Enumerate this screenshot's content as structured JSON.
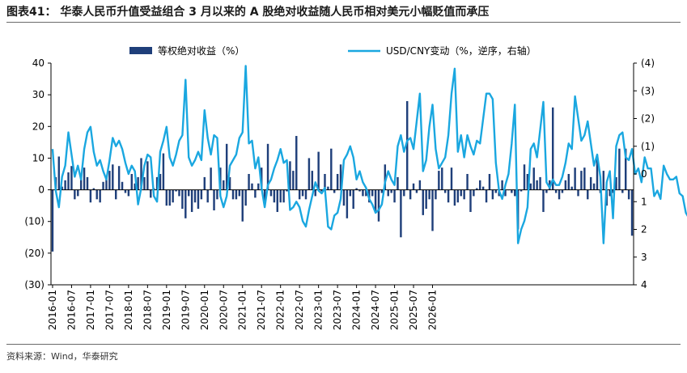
{
  "header": {
    "title": "图表41：  华泰人民币升值受益组合 3 月以来的 A 股绝对收益随人民币相对美元小幅贬值而承压"
  },
  "footer": {
    "source": "资料来源：Wind，华泰研究"
  },
  "colors": {
    "bar": "#1f3f7a",
    "line": "#1aa7e0",
    "axis": "#000000"
  },
  "chart_data": {
    "type": "bar+line",
    "title": "华泰人民币升值受益组合 3 月以来的 A 股绝对收益随人民币相对美元小幅贬值而承压",
    "xlabel": "",
    "ylabel_left": "等权绝对收益（%）",
    "ylabel_right": "USD/CNY变动（%，逆序，右轴）",
    "legend_position": "top",
    "start_month": "2016-01",
    "x_tick_labels": [
      "2016-01",
      "2016-07",
      "2017-01",
      "2017-07",
      "2018-01",
      "2018-07",
      "2019-01",
      "2019-07",
      "2020-01",
      "2020-07",
      "2021-01",
      "2021-07",
      "2022-01",
      "2022-07",
      "2023-01",
      "2023-07",
      "2024-01",
      "2024-07",
      "2025-01",
      "2025-07",
      "2026-01"
    ],
    "y_left": {
      "range": [
        -30,
        40
      ],
      "ticks": [
        40,
        30,
        20,
        10,
        0,
        -10,
        -20,
        -30
      ],
      "tick_labels": [
        "40",
        "30",
        "20",
        "10",
        "0",
        "(10)",
        "(20)",
        "(30)"
      ]
    },
    "y_right": {
      "range": [
        -4,
        4
      ],
      "inverted": true,
      "ticks": [
        -4,
        -3,
        -2,
        -1,
        0,
        1,
        2,
        3,
        4
      ],
      "tick_labels": [
        "(4)",
        "(3)",
        "(2)",
        "(1)",
        "0",
        "1",
        "2",
        "3",
        "4"
      ]
    },
    "series": [
      {
        "name": "等权绝对收益（%）",
        "type": "bar",
        "axis": "left",
        "values": [
          -19.5,
          4,
          10.5,
          1,
          3,
          5.5,
          7.5,
          -3,
          -2,
          4,
          7,
          4,
          -4,
          0.5,
          -3,
          -4,
          2.5,
          4,
          6,
          8,
          -3,
          7.5,
          2.5,
          -1,
          -2,
          5,
          2,
          4,
          10,
          4,
          9,
          -2.5,
          0.5,
          4,
          5,
          11.5,
          -5,
          -5,
          -4,
          -0.5,
          -2,
          -6,
          -9,
          -2,
          -7,
          -4,
          -6,
          -3,
          4,
          -4,
          7,
          -6.5,
          -3,
          7,
          3,
          14.5,
          4,
          -3,
          -3,
          -2,
          -10,
          -5,
          5,
          2,
          -2.5,
          2,
          7,
          -4,
          14.5,
          -2,
          -4,
          -7,
          -4,
          -4,
          -0.5,
          9,
          6,
          17,
          -3,
          -2,
          -3,
          10,
          6,
          -2,
          12,
          -0.5,
          5,
          1,
          13,
          -1,
          5,
          8,
          -5,
          -9,
          -2,
          -6,
          0.5,
          -0.5,
          -2,
          -2,
          -4,
          -2,
          -7,
          -10,
          -1,
          8,
          -2,
          -1,
          -4,
          4,
          -15,
          -2,
          28,
          -3,
          2,
          -1,
          3,
          -8,
          -6,
          -3,
          -13,
          -3,
          6,
          7,
          -1,
          -4,
          7,
          -5,
          -4,
          -2,
          -3,
          5,
          -7,
          -2,
          0.5,
          3,
          1,
          -4,
          5,
          -3,
          -1,
          -2,
          3,
          -2,
          0,
          -1,
          -2,
          -12.5,
          -0.5,
          8,
          5,
          2,
          7,
          3,
          4,
          -7,
          -1,
          3,
          26,
          -1,
          -3,
          -1,
          3,
          5,
          1,
          7,
          -2,
          6,
          7,
          -3,
          4,
          2,
          11,
          -1,
          6,
          -5,
          -2,
          -1,
          4,
          13,
          -1,
          13,
          -3,
          -14.5
        ]
      },
      {
        "name": "USD/CNY变动（%，逆序，右轴）",
        "type": "line",
        "axis": "right",
        "values": [
          -0.9,
          0.6,
          1.2,
          0.1,
          -0.3,
          -1.5,
          -0.7,
          0.1,
          -0.3,
          0.2,
          -0.9,
          -1.5,
          -1.7,
          -0.8,
          -0.3,
          -0.5,
          -0.1,
          0.2,
          -0.5,
          -1.3,
          -1.0,
          -1.2,
          -0.9,
          -0.4,
          0.0,
          -0.3,
          -0.1,
          1.1,
          0.5,
          -0.3,
          -0.7,
          -0.6,
          0.8,
          1.0,
          -0.8,
          -1.2,
          -1.7,
          -0.6,
          -0.3,
          -0.7,
          -1.2,
          -1.4,
          -3.4,
          -0.6,
          -0.3,
          -0.5,
          -0.8,
          -0.5,
          -2.3,
          -1.3,
          -0.7,
          -1.4,
          -1.3,
          0.8,
          1.2,
          0.8,
          -0.3,
          -0.5,
          -0.7,
          -1.3,
          -1.5,
          -3.9,
          -1.1,
          -1.2,
          -0.2,
          -0.6,
          0.5,
          1.2,
          0.4,
          0.2,
          -0.2,
          -0.5,
          -0.9,
          -0.4,
          -0.5,
          1.3,
          1.2,
          1.0,
          1.2,
          1.7,
          1.9,
          1.3,
          0.8,
          0.3,
          0.6,
          0.7,
          0.5,
          1.9,
          2.0,
          1.5,
          1.4,
          0.9,
          -0.5,
          -0.7,
          -1.0,
          -0.6,
          0.2,
          -0.1,
          0.3,
          0.5,
          0.9,
          1.1,
          1.4,
          1.3,
          1.1,
          0.3,
          -0.1,
          0.2,
          0.4,
          -1.0,
          -1.4,
          -0.8,
          -1.2,
          -1.3,
          -0.9,
          -1.9,
          -2.9,
          -0.1,
          -0.5,
          -1.7,
          -2.5,
          -0.9,
          -0.2,
          -0.4,
          -0.6,
          -1.4,
          -2.9,
          -3.8,
          -0.8,
          -1.4,
          -0.6,
          -1.4,
          -1.0,
          -0.7,
          -1.2,
          -1.1,
          -2.0,
          -2.9,
          -2.9,
          -2.7,
          -0.4,
          0.6,
          0.9,
          0.4,
          0.0,
          -1.1,
          -2.5,
          2.5,
          2.0,
          1.7,
          1.2,
          -0.9,
          -1.1,
          -0.6,
          -1.6,
          -2.6,
          0.3,
          0.5,
          0.2,
          0.4,
          0.4,
          0.1,
          -0.4,
          -1.1,
          -0.9,
          -2.8,
          -2.0,
          -1.2,
          -1.4,
          -1.9,
          -1.1,
          -0.3,
          -0.7,
          0.1,
          2.5,
          0.3,
          -0.1,
          1.6,
          -1.0,
          -1.4,
          -1.5,
          -0.6,
          -0.5,
          -0.9,
          0.0,
          -0.2,
          0.3,
          -0.6,
          -0.2,
          -0.2,
          0.8,
          0.6,
          0.9,
          -0.3,
          0.0,
          0.2,
          0.2,
          0.1,
          0.7,
          0.8,
          1.4,
          1.6
        ]
      }
    ]
  }
}
